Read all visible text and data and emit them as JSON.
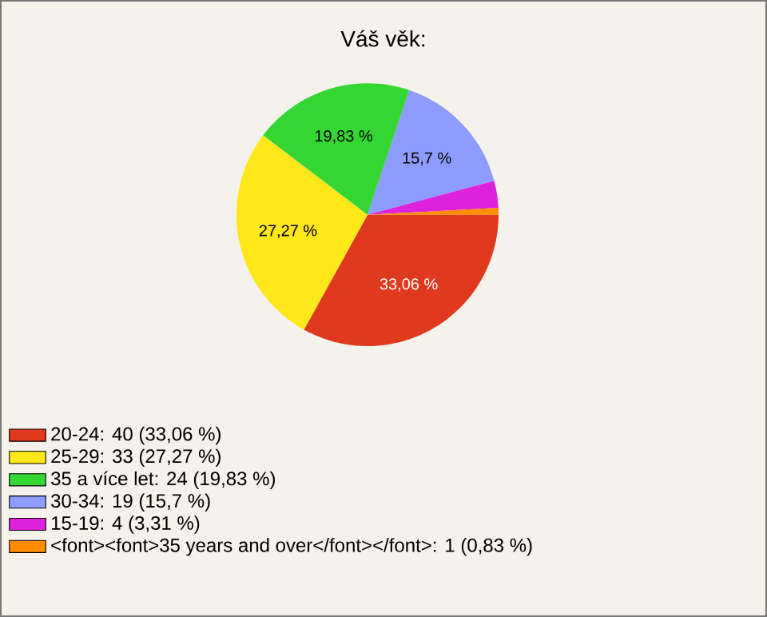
{
  "chart_data": {
    "type": "pie",
    "title": "Váš věk:",
    "categories": [
      "20-24: 40 (33,06 %)",
      "25-29: 33 (27,27 %)",
      "35 a více let: 24 (19,83 %)",
      "30-34: 19 (15,7 %)",
      "15-19: 4 (3,31 %)",
      "<font><font>35 years and over</font></font>: 1 (0,83 %)"
    ],
    "values": [
      33.06,
      27.27,
      19.83,
      15.7,
      3.31,
      0.83
    ],
    "colors": [
      "#e03a1e",
      "#ffe81a",
      "#33d633",
      "#8c9cff",
      "#dd22dd",
      "#ff8c00"
    ],
    "value_labels": [
      "33,06 %",
      "27,27 %",
      "19,83 %",
      "15,7 %",
      null,
      null
    ],
    "legend": "bottom left"
  }
}
